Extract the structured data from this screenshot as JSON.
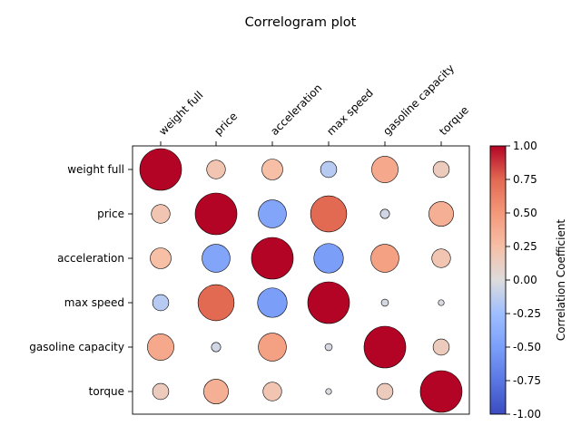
{
  "chart_data": {
    "type": "heatmap",
    "title": "Correlogram plot",
    "variables": [
      "weight full",
      "price",
      "acceleration",
      "max speed",
      "gasoline capacity",
      "torque"
    ],
    "matrix": [
      [
        1.0,
        0.2,
        0.25,
        -0.15,
        0.4,
        0.15
      ],
      [
        0.2,
        1.0,
        -0.45,
        0.75,
        -0.05,
        0.35
      ],
      [
        0.25,
        -0.45,
        1.0,
        -0.5,
        0.45,
        0.2
      ],
      [
        -0.15,
        0.75,
        -0.5,
        1.0,
        -0.03,
        -0.02
      ],
      [
        0.4,
        -0.05,
        0.45,
        -0.03,
        1.0,
        0.15
      ],
      [
        0.15,
        0.35,
        0.2,
        -0.02,
        0.15,
        1.0
      ]
    ],
    "encoding": "circle area proportional to absolute correlation, color by correlation",
    "colorbar": {
      "label": "Correlation Coefficient",
      "colormap": "coolwarm",
      "range": [
        -1.0,
        1.0
      ],
      "ticks": [
        "-1.00",
        "-0.75",
        "-0.50",
        "-0.25",
        "0.00",
        "0.25",
        "0.50",
        "0.75",
        "1.00"
      ]
    },
    "grid": false
  }
}
